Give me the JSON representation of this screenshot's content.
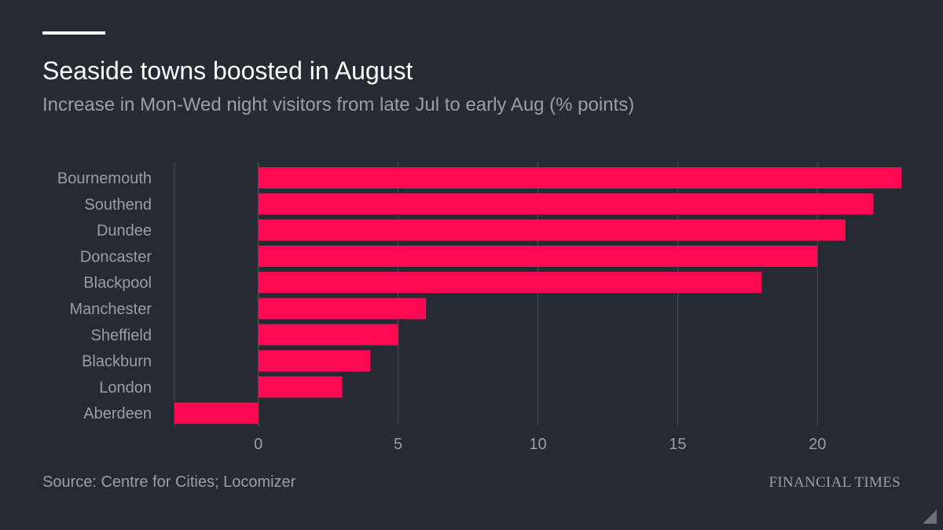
{
  "header": {
    "title": "Seaside towns boosted in August",
    "subtitle": "Increase in Mon-Wed night visitors from late Jul to early Aug (% points)"
  },
  "footer": {
    "source": "Source: Centre for Cities; Locomizer",
    "brand": "FINANCIAL TIMES"
  },
  "colors": {
    "background": "#262a33",
    "bar": "#ff0a52",
    "grid": "#4a4e56",
    "text_muted": "#9a9ea6",
    "text_main": "#ffffff"
  },
  "chart_data": {
    "type": "bar",
    "orientation": "horizontal",
    "title": "Seaside towns boosted in August",
    "subtitle": "Increase in Mon-Wed night visitors from late Jul to early Aug (% points)",
    "categories": [
      "Bournemouth",
      "Southend",
      "Dundee",
      "Doncaster",
      "Blackpool",
      "Manchester",
      "Sheffield",
      "Blackburn",
      "London",
      "Aberdeen"
    ],
    "values": [
      23,
      22,
      21,
      20,
      18,
      6,
      5,
      4,
      3,
      -3
    ],
    "xlim": [
      -3,
      23
    ],
    "xticks": [
      0,
      5,
      10,
      15,
      20
    ],
    "xlabel": "",
    "ylabel": "",
    "grid": true,
    "legend": "none"
  }
}
